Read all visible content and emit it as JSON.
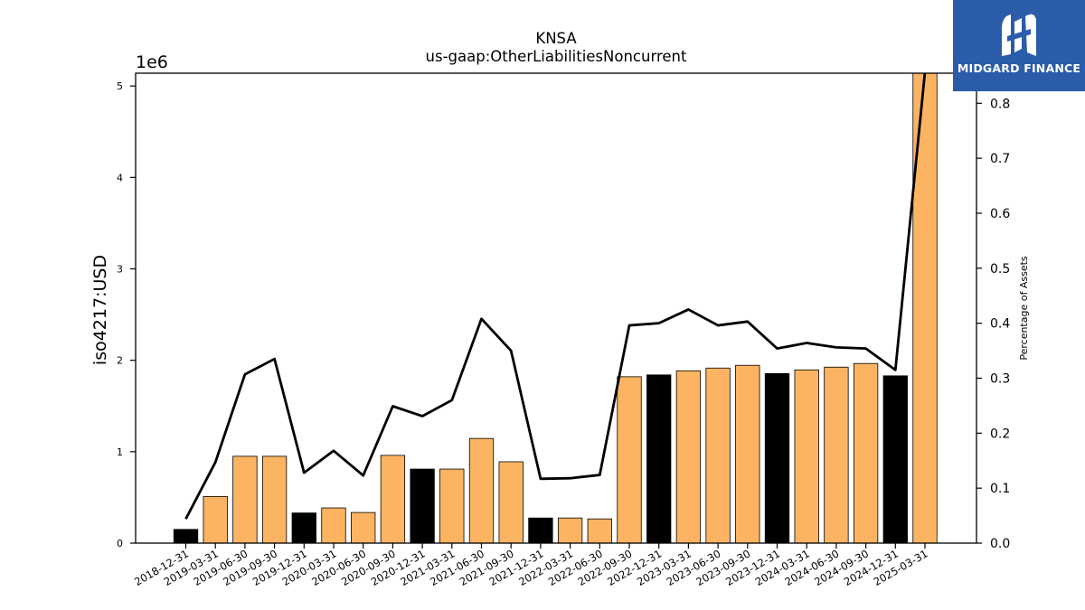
{
  "chart_data": {
    "type": "bar",
    "title": "KNSA",
    "subtitle": "us-gaap:OtherLiabilitiesNoncurrent",
    "ylabel": "iso4217:USD",
    "y_offset_label": "1e6",
    "y2label": "Percentage of Assets",
    "ylim": [
      0,
      5140000
    ],
    "y2lim": [
      0,
      0.8547
    ],
    "yticks": [
      0,
      1000000,
      2000000,
      3000000,
      4000000,
      5000000
    ],
    "ytick_labels": [
      "0",
      "1",
      "2",
      "3",
      "4",
      "5"
    ],
    "y2ticks": [
      0.0,
      0.1,
      0.2,
      0.3,
      0.4,
      0.5,
      0.6,
      0.7,
      0.8
    ],
    "y2tick_labels": [
      "0.0",
      "0.1",
      "0.2",
      "0.3",
      "0.4",
      "0.5",
      "0.6",
      "0.7",
      "0.8"
    ],
    "grid": false,
    "categories": [
      "2018-12-31",
      "2019-03-31",
      "2019-06-30",
      "2019-09-30",
      "2019-12-31",
      "2020-03-31",
      "2020-06-30",
      "2020-09-30",
      "2020-12-31",
      "2021-03-31",
      "2021-06-30",
      "2021-09-30",
      "2021-12-31",
      "2022-03-31",
      "2022-06-30",
      "2022-09-30",
      "2022-12-31",
      "2023-03-31",
      "2023-06-30",
      "2023-09-30",
      "2023-12-31",
      "2024-03-31",
      "2024-06-30",
      "2024-09-30",
      "2024-12-31",
      "2025-03-31"
    ],
    "series": [
      {
        "type": "bar",
        "axis": "left",
        "values": [
          150000,
          510000,
          950000,
          950000,
          330000,
          385000,
          335000,
          960000,
          810000,
          810000,
          1145000,
          890000,
          275000,
          275000,
          265000,
          1820000,
          1840000,
          1885000,
          1915000,
          1945000,
          1855000,
          1895000,
          1925000,
          1965000,
          1830000,
          5140000
        ],
        "bar_colors": [
          "#000000",
          "#fdb462",
          "#fdb462",
          "#fdb462",
          "#000000",
          "#fdb462",
          "#fdb462",
          "#fdb462",
          "#000000",
          "#fdb462",
          "#fdb462",
          "#fdb462",
          "#000000",
          "#fdb462",
          "#fdb462",
          "#fdb462",
          "#000000",
          "#fdb462",
          "#fdb462",
          "#fdb462",
          "#000000",
          "#fdb462",
          "#fdb462",
          "#fdb462",
          "#000000",
          "#fdb462"
        ]
      },
      {
        "type": "line",
        "axis": "right",
        "color": "#000000",
        "values": [
          0.044,
          0.147,
          0.307,
          0.335,
          0.128,
          0.168,
          0.123,
          0.249,
          0.231,
          0.26,
          0.408,
          0.35,
          0.117,
          0.118,
          0.124,
          0.396,
          0.4,
          0.425,
          0.396,
          0.403,
          0.354,
          0.364,
          0.356,
          0.354,
          0.315,
          0.857
        ]
      }
    ]
  },
  "logo": {
    "text": "MIDGARD FINANCE",
    "bg_color": "#2a5caa"
  }
}
